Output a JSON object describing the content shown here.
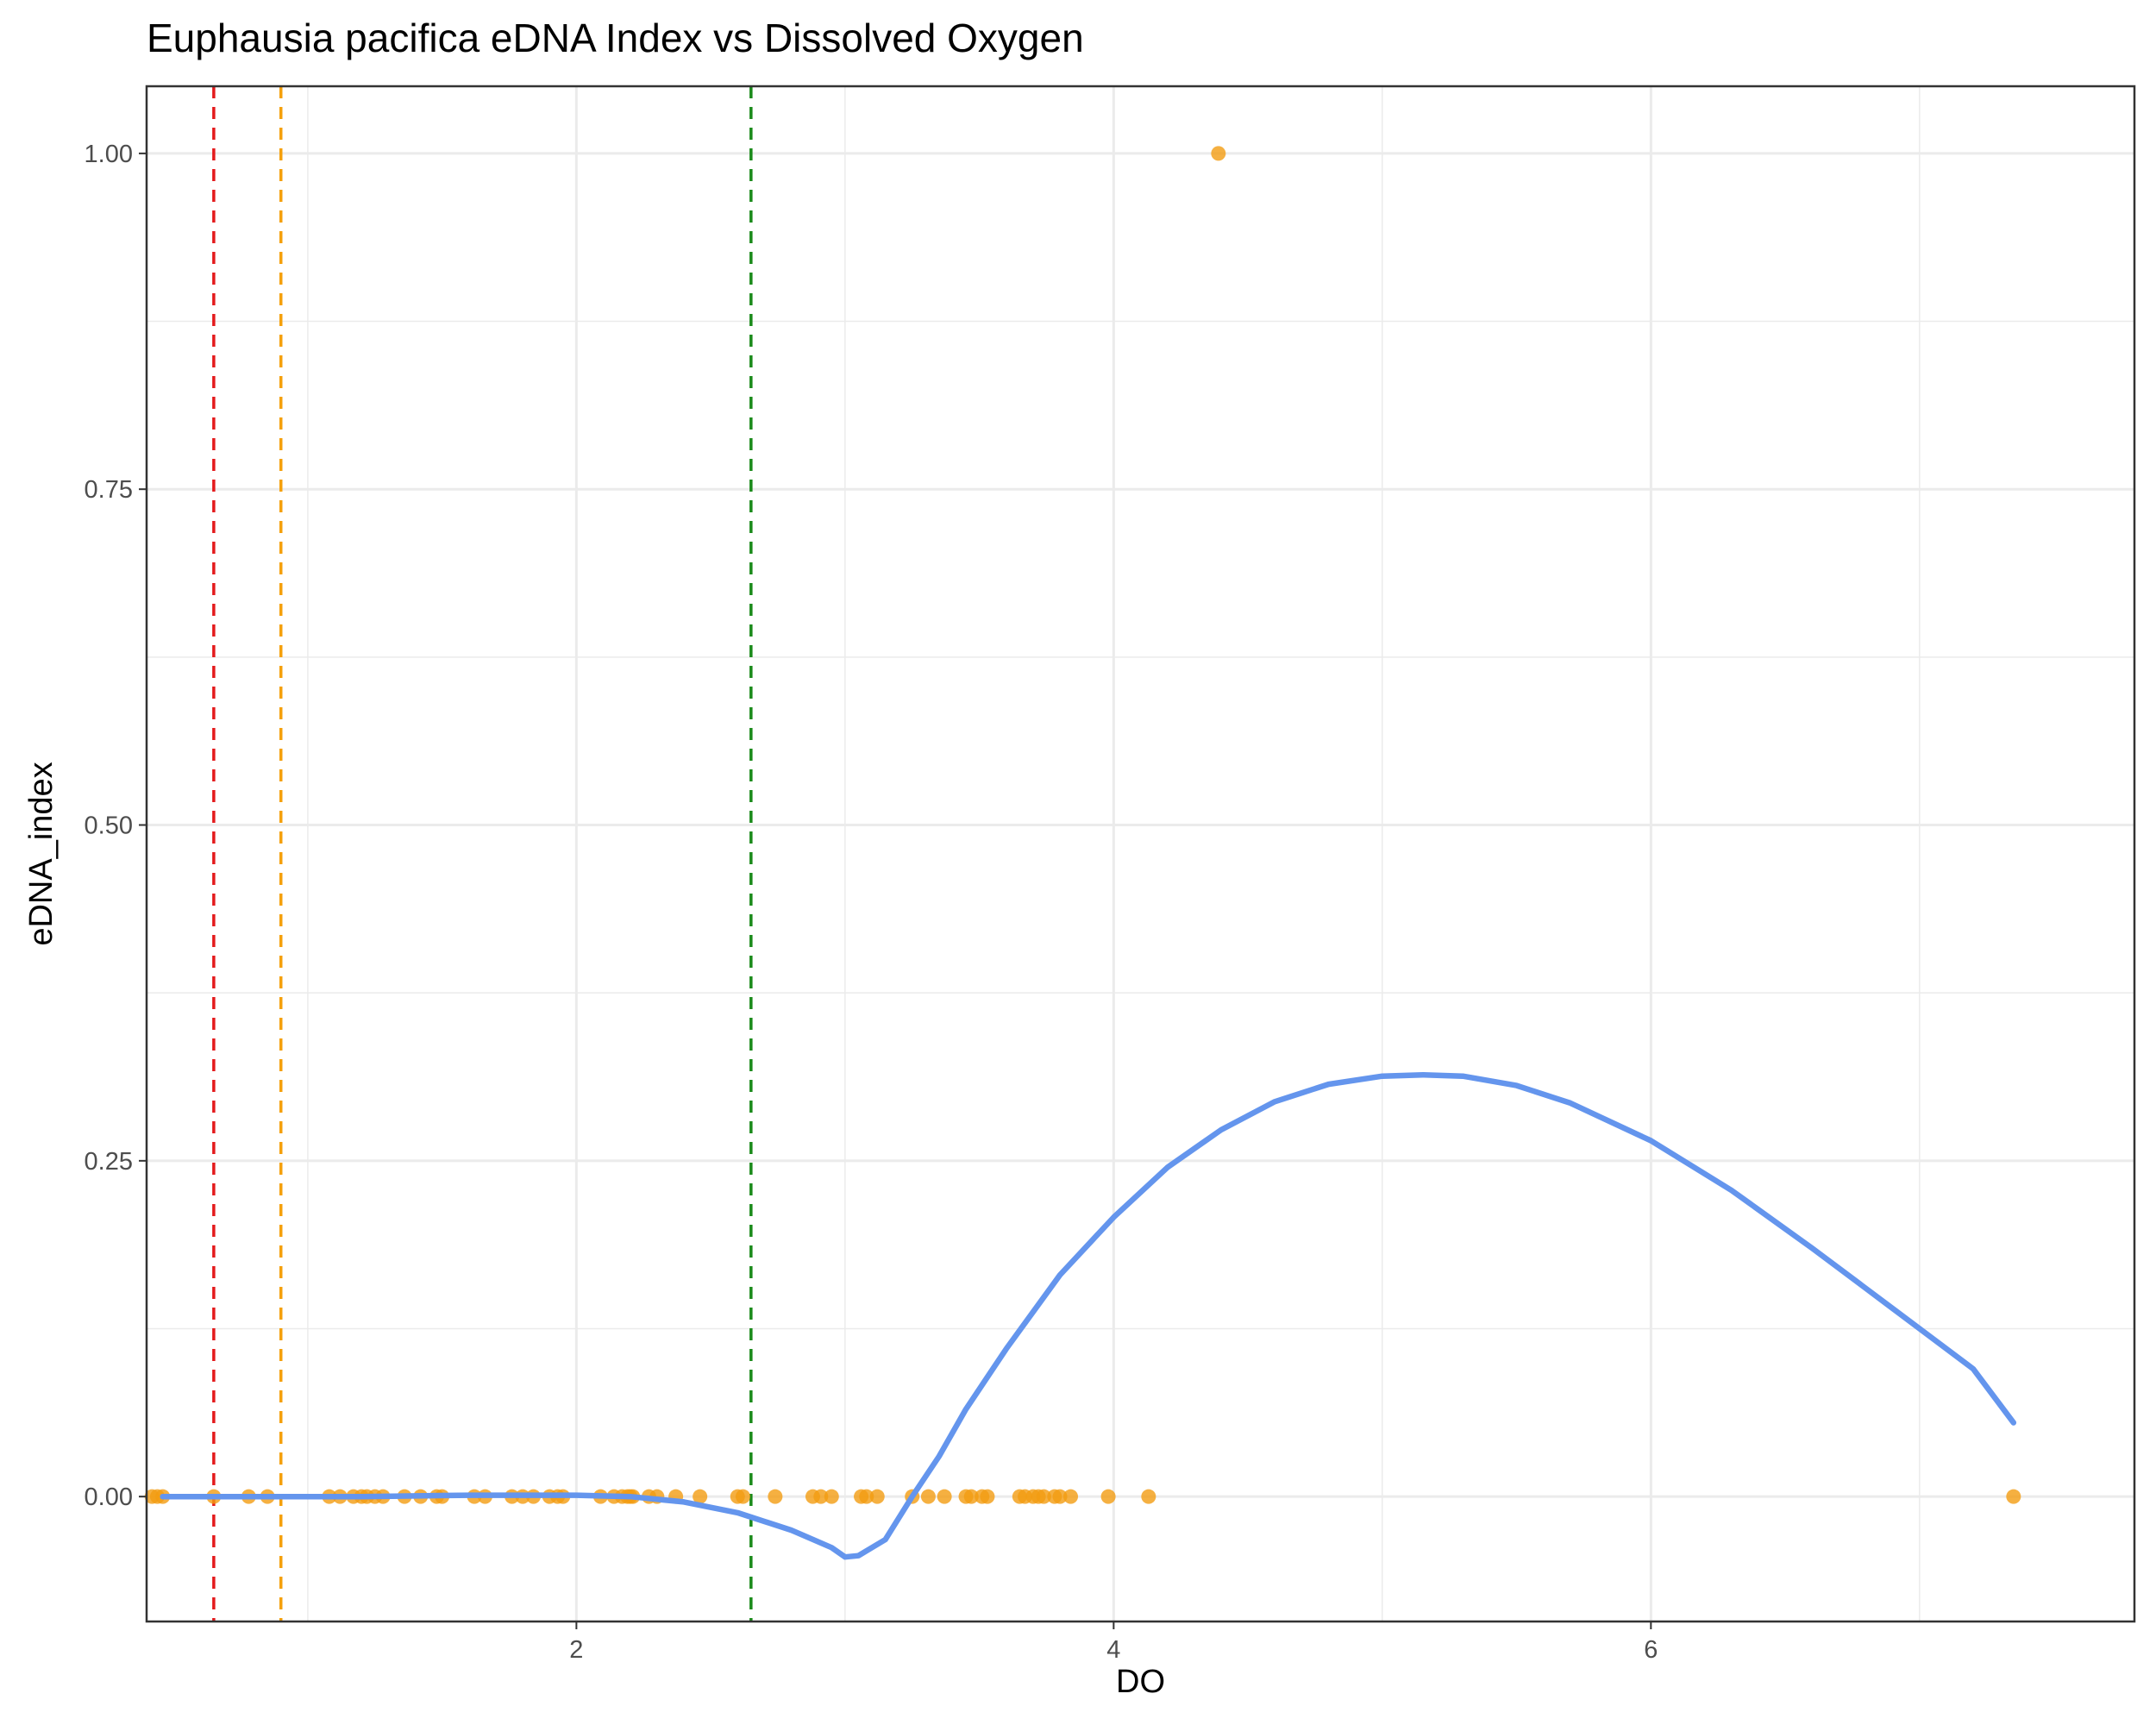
{
  "chart_data": {
    "type": "scatter",
    "title": "Euphausia pacifica eDNA Index vs Dissolved Oxygen",
    "xlabel": "DO",
    "ylabel": "eDNA_index",
    "xlim": [
      0.4,
      7.8
    ],
    "ylim": [
      -0.093,
      1.05
    ],
    "xticks": [
      2,
      4,
      6
    ],
    "xtick_labels": [
      "2",
      "4",
      "6"
    ],
    "yticks": [
      0,
      0.25,
      0.5,
      0.75,
      1.0
    ],
    "ytick_labels": [
      "0.00",
      "0.25",
      "0.50",
      "0.75",
      "1.00"
    ],
    "x_minor_ticks": [
      1,
      3,
      5,
      7
    ],
    "y_minor_ticks": [
      0.125,
      0.375,
      0.625,
      0.875
    ],
    "grid": true,
    "legend": "none",
    "point_color": "#f39c12",
    "smooth_color": "#6495ed",
    "points": {
      "x": [
        0.42,
        0.44,
        0.46,
        0.65,
        0.78,
        0.85,
        1.08,
        1.12,
        1.17,
        1.2,
        1.22,
        1.25,
        1.28,
        1.36,
        1.42,
        1.48,
        1.5,
        1.62,
        1.66,
        1.76,
        1.8,
        1.84,
        1.9,
        1.93,
        1.95,
        2.09,
        2.14,
        2.17,
        2.19,
        2.2,
        2.21,
        2.27,
        2.3,
        2.37,
        2.46,
        2.6,
        2.62,
        2.74,
        2.88,
        2.91,
        2.95,
        3.06,
        3.08,
        3.12,
        3.25,
        3.31,
        3.37,
        3.45,
        3.47,
        3.51,
        3.53,
        3.65,
        3.67,
        3.7,
        3.72,
        3.74,
        3.78,
        3.8,
        3.84,
        3.98,
        4.13,
        4.39,
        7.35
      ],
      "y": [
        0,
        0,
        0,
        0,
        0,
        0,
        0,
        0,
        0,
        0,
        0,
        0,
        0,
        0,
        0,
        0,
        0,
        0,
        0,
        0,
        0,
        0,
        0,
        0,
        0,
        0,
        0,
        0,
        0,
        0,
        0,
        0,
        0,
        0,
        0,
        0,
        0,
        0,
        0,
        0,
        0,
        0,
        0,
        0,
        0,
        0,
        0,
        0,
        0,
        0,
        0,
        0,
        0,
        0,
        0,
        0,
        0,
        0,
        0,
        0,
        0,
        1.0,
        0
      ]
    },
    "smooth_line": {
      "x": [
        0.46,
        0.8,
        1.2,
        1.6,
        2.0,
        2.2,
        2.4,
        2.6,
        2.8,
        2.95,
        3.0,
        3.05,
        3.15,
        3.25,
        3.35,
        3.45,
        3.6,
        3.8,
        4.0,
        4.2,
        4.4,
        4.6,
        4.8,
        5.0,
        5.15,
        5.3,
        5.5,
        5.7,
        6.0,
        6.3,
        6.6,
        6.9,
        7.2,
        7.35
      ],
      "y": [
        0.0,
        0.0,
        0.0,
        0.001,
        0.001,
        0.0,
        -0.004,
        -0.012,
        -0.025,
        -0.038,
        -0.045,
        -0.044,
        -0.032,
        0.0,
        0.03,
        0.065,
        0.11,
        0.165,
        0.208,
        0.245,
        0.273,
        0.294,
        0.307,
        0.313,
        0.314,
        0.313,
        0.306,
        0.293,
        0.265,
        0.228,
        0.185,
        0.14,
        0.095,
        0.055
      ]
    },
    "reference_lines": [
      {
        "x": 0.65,
        "color": "#e41a1c"
      },
      {
        "x": 0.9,
        "color": "#f5a00a"
      },
      {
        "x": 2.65,
        "color": "#1a8a1a"
      }
    ]
  }
}
